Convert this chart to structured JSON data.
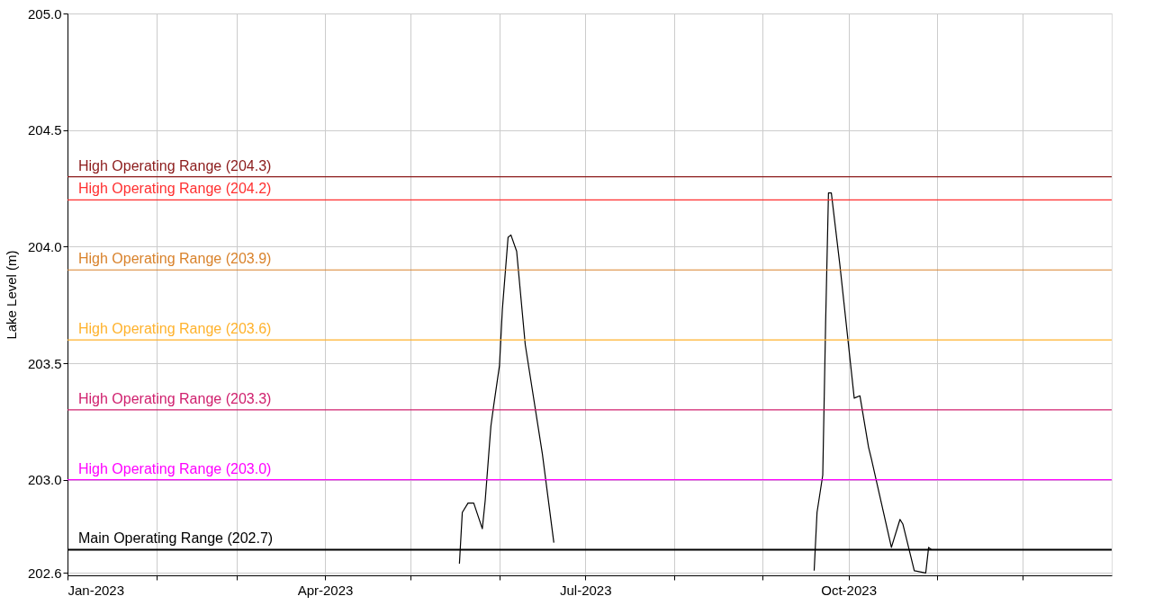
{
  "chart_data": {
    "type": "line",
    "ylabel": "Lake Level (m)",
    "x": [
      "2023-05-18",
      "2023-05-19",
      "2023-05-21",
      "2023-05-23",
      "2023-05-26",
      "2023-05-27",
      "2023-05-29",
      "2023-05-30",
      "2023-06-01",
      "2023-06-02",
      "2023-06-04",
      "2023-06-05",
      "2023-06-07",
      "2023-06-10",
      "2023-06-16",
      "2023-06-20"
    ],
    "series": [
      {
        "color": "#000000",
        "values": [
          202.64,
          202.86,
          202.9,
          202.9,
          202.79,
          202.91,
          203.23,
          203.32,
          203.49,
          203.73,
          204.04,
          204.05,
          203.98,
          203.58,
          203.11,
          202.73
        ]
      },
      {
        "color": "#000000",
        "x": [
          "2023-09-19",
          "2023-09-20",
          "2023-09-22",
          "2023-09-23",
          "2023-09-24",
          "2023-09-25",
          "2023-09-28",
          "2023-10-03",
          "2023-10-05",
          "2023-10-08",
          "2023-10-09",
          "2023-10-16",
          "2023-10-19",
          "2023-10-20",
          "2023-10-24",
          "2023-10-28",
          "2023-10-29",
          "2023-10-30"
        ],
        "values": [
          202.61,
          202.86,
          203.02,
          203.67,
          204.23,
          204.23,
          203.92,
          203.35,
          203.36,
          203.14,
          203.09,
          202.71,
          202.83,
          202.81,
          202.61,
          202.6,
          202.71,
          202.7
        ]
      }
    ],
    "xlim": [
      "2023-01-01",
      "2024-01-01"
    ],
    "xticks": [
      {
        "value": "2023-01-01",
        "label": "Jan-2023"
      },
      {
        "value": "2023-02-01",
        "label": null
      },
      {
        "value": "2023-03-01",
        "label": null
      },
      {
        "value": "2023-04-01",
        "label": "Apr-2023"
      },
      {
        "value": "2023-05-01",
        "label": null
      },
      {
        "value": "2023-06-01",
        "label": null
      },
      {
        "value": "2023-07-01",
        "label": "Jul-2023"
      },
      {
        "value": "2023-08-01",
        "label": null
      },
      {
        "value": "2023-09-01",
        "label": null
      },
      {
        "value": "2023-10-01",
        "label": "Oct-2023"
      },
      {
        "value": "2023-11-01",
        "label": null
      },
      {
        "value": "2023-12-01",
        "label": null
      }
    ],
    "ylim": [
      202.59,
      205.0
    ],
    "yticks": [
      202.6,
      {
        "value": 203.0,
        "label": "203.0"
      },
      203.5,
      {
        "value": 204.0,
        "label": "204.0"
      },
      204.5,
      {
        "value": 205.0,
        "label": "205.0"
      }
    ],
    "grid": true,
    "marker": "none",
    "line_style": "solid",
    "ref_lines": [
      {
        "axis": "y",
        "value": 204.3,
        "label": "High Operating Range (204.3)",
        "color": "#8b1a1a"
      },
      {
        "axis": "y",
        "value": 204.2,
        "label": "High Operating Range (204.2)",
        "color": "#ff3030"
      },
      {
        "axis": "y",
        "value": 203.9,
        "label": "High Operating Range (203.9)",
        "color": "#d9822b"
      },
      {
        "axis": "y",
        "value": 203.6,
        "label": "High Operating Range (203.6)",
        "color": "#ffb22c"
      },
      {
        "axis": "y",
        "value": 203.3,
        "label": "High Operating Range (203.3)",
        "color": "#d0206e"
      },
      {
        "axis": "y",
        "value": 203.0,
        "label": "High Operating Range (203.0)",
        "color": "#ff00ff"
      },
      {
        "axis": "y",
        "value": 202.7,
        "label": "Main Operating Range (202.7)",
        "color": "#000000"
      }
    ]
  }
}
